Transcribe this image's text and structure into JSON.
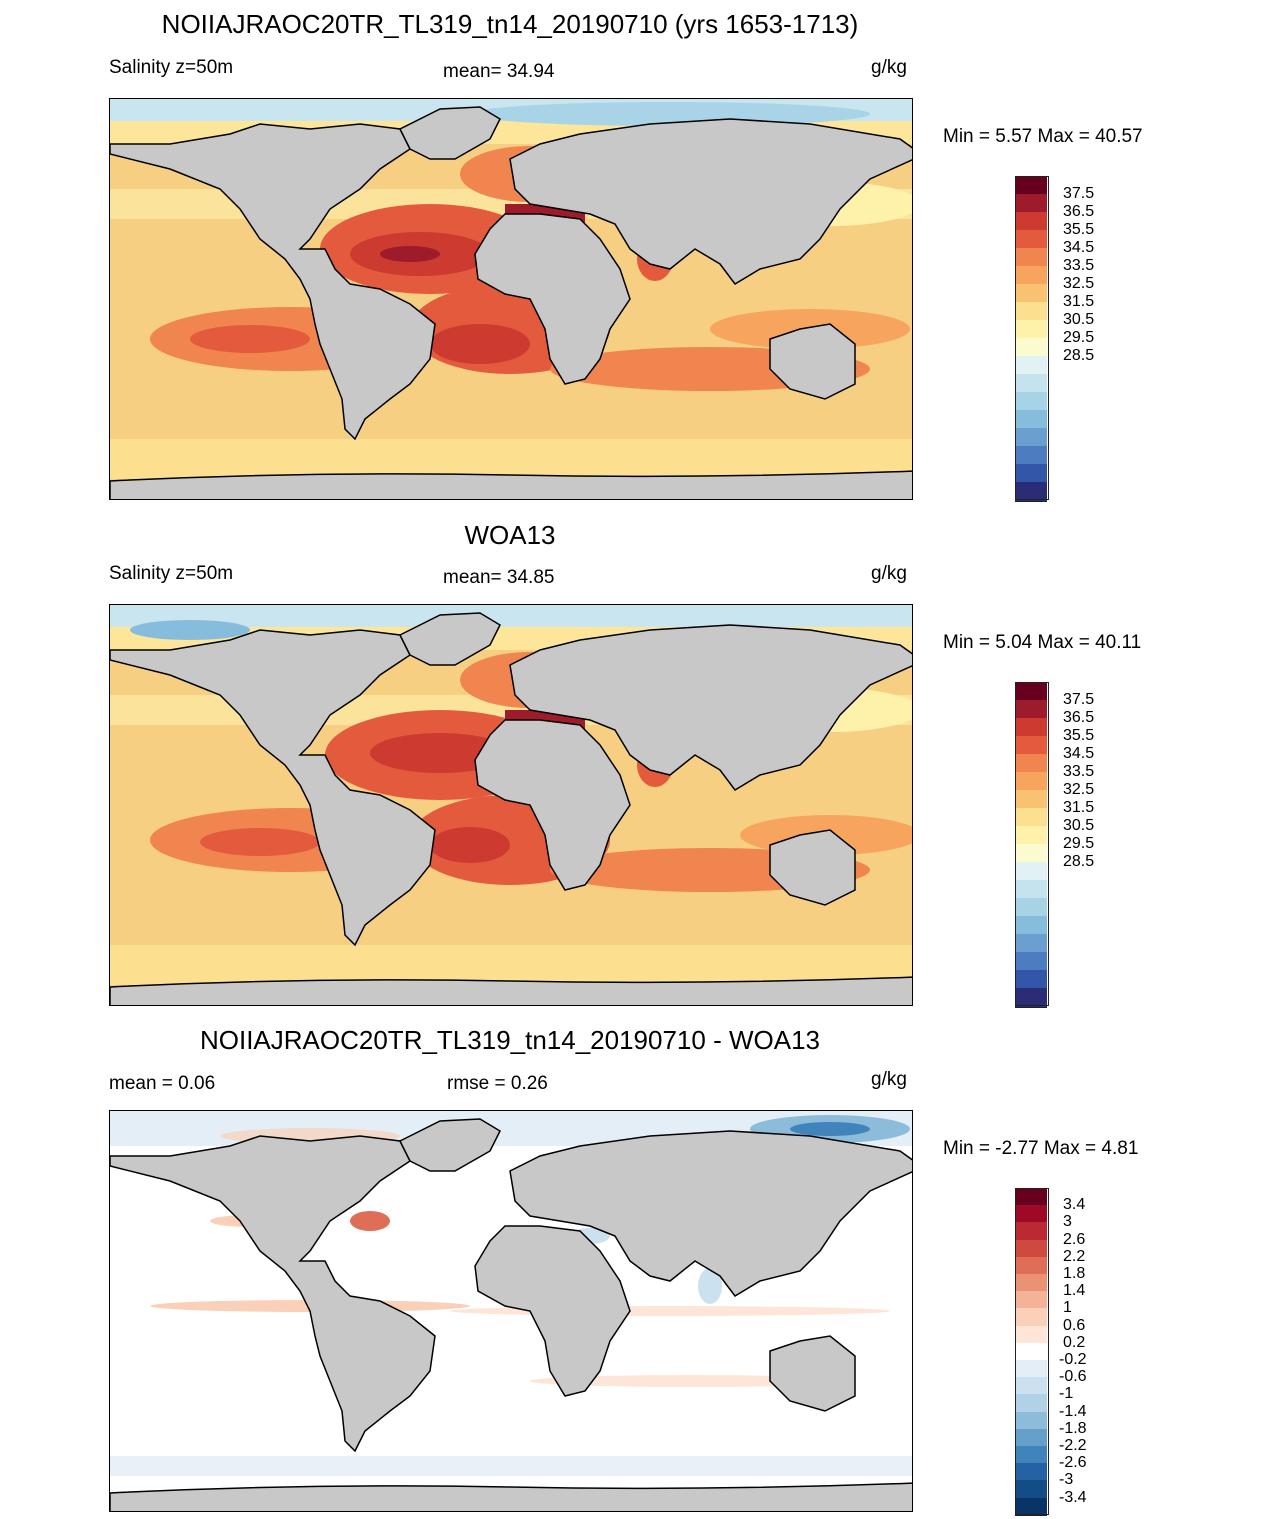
{
  "panels": [
    {
      "title": "NOIIAJRAOC20TR_TL319_tn14_20190710 (yrs 1653-1713)",
      "left_label": "Salinity z=50m",
      "center_label": "mean=  34.94",
      "units": "g/kg",
      "minmax": "Min =   5.57 Max =  40.57",
      "colorbar": {
        "labels": [
          "37.5",
          "36.5",
          "35.5",
          "34.5",
          "33.5",
          "32.5",
          "31.5",
          "30.5",
          "29.5",
          "28.5"
        ],
        "colors": [
          "#67001f",
          "#9e1b2b",
          "#cc3a30",
          "#e45a3c",
          "#f08550",
          "#f7a55e",
          "#f9c272",
          "#fde08f",
          "#fef2ab",
          "#fbfbd0",
          "#e2f2f4",
          "#c4e3ee",
          "#a6d3e6",
          "#87bddc",
          "#6a9fd0",
          "#4d7cc0",
          "#3356a8",
          "#2a2d75"
        ]
      }
    },
    {
      "title": "WOA13",
      "left_label": "Salinity z=50m",
      "center_label": "mean=  34.85",
      "units": "g/kg",
      "minmax": "Min =   5.04 Max =  40.11",
      "colorbar": {
        "labels": [
          "37.5",
          "36.5",
          "35.5",
          "34.5",
          "33.5",
          "32.5",
          "31.5",
          "30.5",
          "29.5",
          "28.5"
        ],
        "colors": [
          "#67001f",
          "#9e1b2b",
          "#cc3a30",
          "#e45a3c",
          "#f08550",
          "#f7a55e",
          "#f9c272",
          "#fde08f",
          "#fef2ab",
          "#fbfbd0",
          "#e2f2f4",
          "#c4e3ee",
          "#a6d3e6",
          "#87bddc",
          "#6a9fd0",
          "#4d7cc0",
          "#3356a8",
          "#2a2d75"
        ]
      }
    },
    {
      "title": "NOIIAJRAOC20TR_TL319_tn14_20190710 - WOA13",
      "left_label": "mean =   0.06",
      "center_label": "rmse =   0.26",
      "units": "g/kg",
      "minmax": "Min =  -2.77 Max =   4.81",
      "colorbar": {
        "labels": [
          "3.4",
          "3",
          "2.6",
          "2.2",
          "1.8",
          "1.4",
          "1",
          "0.6",
          "0.2",
          "-0.2",
          "-0.6",
          "-1",
          "-1.4",
          "-1.8",
          "-2.2",
          "-2.6",
          "-3",
          "-3.4"
        ],
        "colors": [
          "#67001f",
          "#9e0a26",
          "#bb2a33",
          "#d0493f",
          "#de6e56",
          "#ea9273",
          "#f4b397",
          "#fad0b8",
          "#fde6d7",
          "#ffffff",
          "#e3eef6",
          "#cce1ef",
          "#b0d1e7",
          "#8dbcdb",
          "#65a0cb",
          "#4183bb",
          "#2562a4",
          "#144c88",
          "#0b3466"
        ]
      }
    }
  ],
  "colors": {
    "land": "#c8c8c8",
    "coast": "#000000"
  }
}
